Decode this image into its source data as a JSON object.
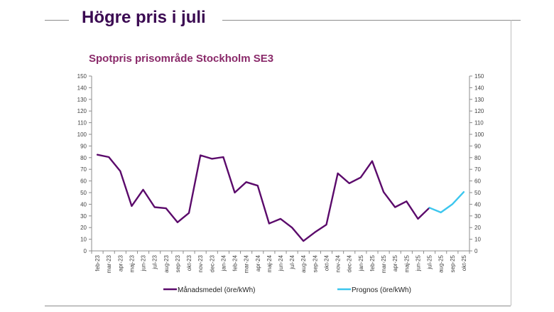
{
  "slide": {
    "title": "Högre pris i juli"
  },
  "chart_data": {
    "type": "line",
    "title": "Spotpris prisområde Stockholm SE3",
    "xlabel": "",
    "ylabel": "",
    "ylim": [
      0,
      150
    ],
    "y_ticks": [
      0,
      10,
      20,
      30,
      40,
      50,
      60,
      70,
      80,
      90,
      100,
      110,
      120,
      130,
      140,
      150
    ],
    "secondary_y_ticks": [
      0,
      10,
      20,
      30,
      40,
      50,
      60,
      70,
      80,
      90,
      100,
      110,
      120,
      130,
      140,
      150
    ],
    "grid": false,
    "legend_position": "bottom",
    "categories": [
      "feb-23",
      "mar-23",
      "apr-23",
      "maj-23",
      "jun-23",
      "jul-23",
      "aug-23",
      "sep-23",
      "okt-23",
      "nov-23",
      "dec-23",
      "jan-24",
      "feb-24",
      "mar-24",
      "apr-24",
      "maj-24",
      "jun-24",
      "jul-24",
      "aug-24",
      "sep-24",
      "okt-24",
      "nov-24",
      "dec-24",
      "jan-25",
      "feb-25",
      "mar-25",
      "apr-25",
      "maj-25",
      "jun-25",
      "jul-25",
      "aug-25",
      "sep-25",
      "okt-25"
    ],
    "series": [
      {
        "name": "Månadsmedel (öre/kWh)",
        "color": "#5b0a6b",
        "values": [
          82.5,
          80.5,
          68.5,
          38.5,
          52.5,
          37.5,
          36.5,
          24.5,
          32.5,
          82,
          79,
          80.5,
          50,
          59,
          56,
          23.5,
          27.5,
          20,
          8.5,
          16,
          22.5,
          66.5,
          58,
          63,
          77,
          50.5,
          37.5,
          42.5,
          27.5,
          37,
          null,
          null,
          null
        ]
      },
      {
        "name": "Prognos (öre/kWh)",
        "color": "#3cc6ee",
        "values": [
          null,
          null,
          null,
          null,
          null,
          null,
          null,
          null,
          null,
          null,
          null,
          null,
          null,
          null,
          null,
          null,
          null,
          null,
          null,
          null,
          null,
          null,
          null,
          null,
          null,
          null,
          null,
          null,
          null,
          37,
          33,
          40,
          50.5
        ]
      }
    ]
  }
}
